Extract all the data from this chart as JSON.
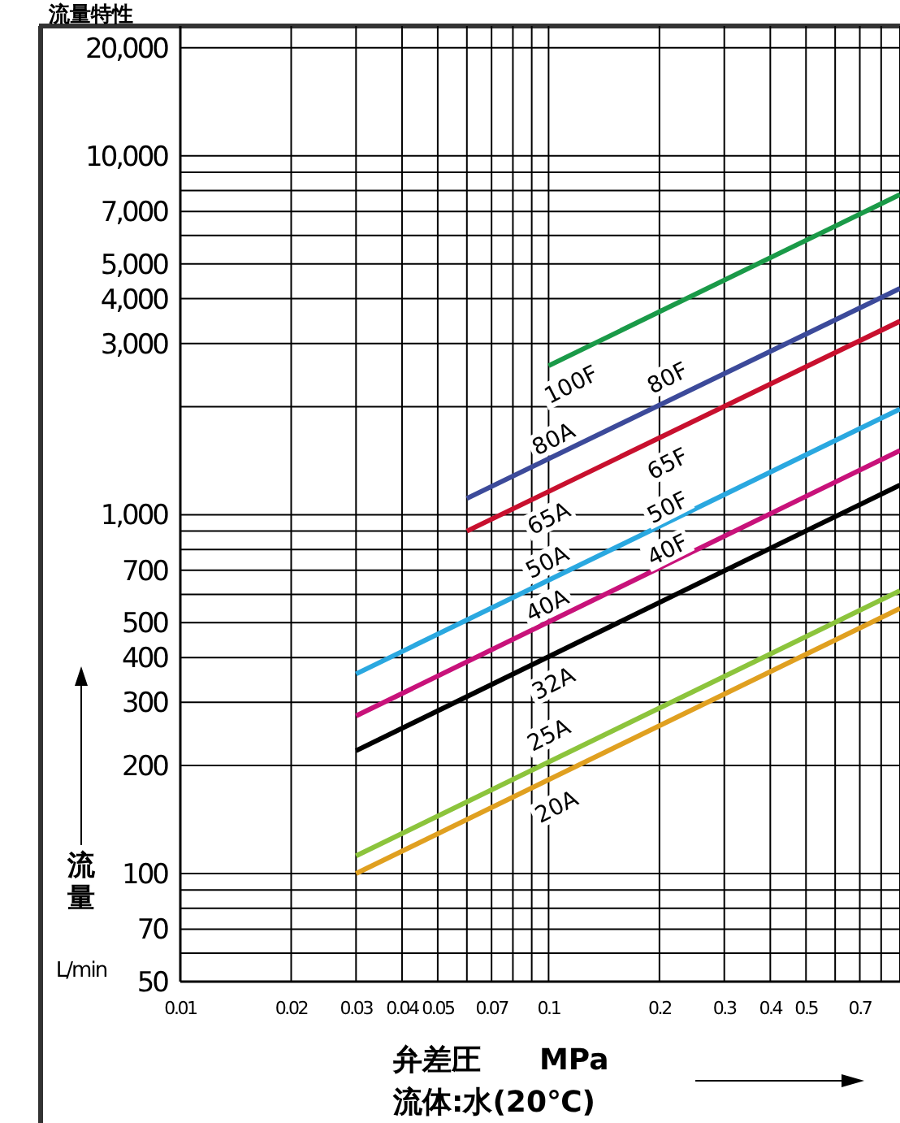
{
  "chart_data": {
    "type": "line",
    "title": "流量特性",
    "xlabel": "弁差圧　　MPa",
    "ylabel": "流量",
    "log": "xy",
    "grid": true,
    "xlim": [
      0.01,
      0.9
    ],
    "ylim": [
      50,
      23000
    ],
    "xticks": [
      0.01,
      0.02,
      0.03,
      0.04,
      0.05,
      {
        "value": 0.06,
        "label": null
      },
      0.07,
      {
        "value": 0.08,
        "label": null
      },
      {
        "value": 0.09,
        "label": null
      },
      0.1,
      0.2,
      0.3,
      0.4,
      0.5,
      {
        "value": 0.6,
        "label": null
      },
      0.7,
      {
        "value": 0.8,
        "label": null
      },
      {
        "value": 0.9,
        "label": null
      }
    ],
    "yticks": [
      50,
      {
        "value": 60,
        "label": null
      },
      70,
      {
        "value": 80,
        "label": null
      },
      {
        "value": 90,
        "label": null
      },
      100,
      200,
      300,
      400,
      500,
      {
        "value": 600,
        "label": null
      },
      700,
      {
        "value": 800,
        "label": null
      },
      {
        "value": 900,
        "label": null
      },
      {
        "value": 1000,
        "label": "1,000"
      },
      {
        "value": 2000,
        "label": null
      },
      {
        "value": 3000,
        "label": "3,000"
      },
      {
        "value": 4000,
        "label": "4,000"
      },
      {
        "value": 5000,
        "label": "5,000"
      },
      {
        "value": 6000,
        "label": null
      },
      {
        "value": 7000,
        "label": "7,000"
      },
      {
        "value": 8000,
        "label": null
      },
      {
        "value": 9000,
        "label": null
      },
      {
        "value": 10000,
        "label": "10,000"
      },
      {
        "value": 20000,
        "label": "20,000"
      }
    ],
    "series": [
      {
        "color": "#1a9a48",
        "x": [
          0.1,
          0.9
        ],
        "values": [
          2600,
          7800
        ]
      },
      {
        "color": "#3c4a9a",
        "x": [
          0.06,
          0.9
        ],
        "values": [
          1110,
          4270
        ]
      },
      {
        "color": "#c8102e",
        "x": [
          0.06,
          0.9
        ],
        "values": [
          900,
          3460
        ]
      },
      {
        "color": "#2aa8e0",
        "x": [
          0.03,
          0.9
        ],
        "values": [
          360,
          1970
        ]
      },
      {
        "color": "#c8127a",
        "x": [
          0.03,
          0.9
        ],
        "values": [
          275,
          1510
        ]
      },
      {
        "color": "#000000",
        "x": [
          0.03,
          0.9
        ],
        "values": [
          220,
          1210
        ]
      },
      {
        "color": "#8cc43c",
        "x": [
          0.03,
          0.9
        ],
        "values": [
          112,
          614
        ]
      },
      {
        "color": "#e0a020",
        "x": [
          0.03,
          0.9
        ],
        "values": [
          100,
          548
        ]
      }
    ],
    "annotations": [
      {
        "text": "100F",
        "x": 0.115,
        "y": 2310
      },
      {
        "text": "80F",
        "x": 0.21,
        "y": 2410
      },
      {
        "text": "80A",
        "x": 0.103,
        "y": 1630
      },
      {
        "text": "65F",
        "x": 0.21,
        "y": 1390
      },
      {
        "text": "65A",
        "x": 0.1,
        "y": 980
      },
      {
        "text": "50F",
        "x": 0.21,
        "y": 1050
      },
      {
        "text": "50A",
        "x": 0.099,
        "y": 740
      },
      {
        "text": "40F",
        "x": 0.21,
        "y": 800
      },
      {
        "text": "40A",
        "x": 0.099,
        "y": 560
      },
      {
        "text": "32A",
        "x": 0.103,
        "y": 340
      },
      {
        "text": "25A",
        "x": 0.1,
        "y": 244
      },
      {
        "text": "20A",
        "x": 0.105,
        "y": 154
      },
      "L/min",
      "流体:水(20℃)"
    ]
  }
}
